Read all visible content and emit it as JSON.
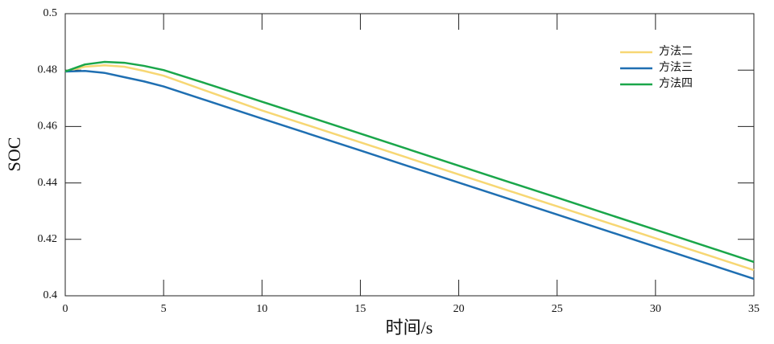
{
  "chart_data": {
    "type": "line",
    "x_label": "时间/s",
    "y_label": "SOC",
    "x": [
      0,
      1,
      2,
      3,
      4,
      5,
      7.5,
      10,
      15,
      20,
      25,
      30,
      35
    ],
    "series": [
      {
        "name": "方法二",
        "color": "#f7d774",
        "values": [
          0.4795,
          0.4812,
          0.4817,
          0.4812,
          0.4797,
          0.478,
          0.4718,
          0.4657,
          0.4544,
          0.443,
          0.4317,
          0.4204,
          0.4091
        ]
      },
      {
        "name": "方法三",
        "color": "#1f6fb2",
        "values": [
          0.4795,
          0.4797,
          0.479,
          0.4775,
          0.476,
          0.4742,
          0.4685,
          0.4628,
          0.4515,
          0.4401,
          0.4288,
          0.4174,
          0.406
        ]
      },
      {
        "name": "方法四",
        "color": "#1aa64a",
        "values": [
          0.4795,
          0.482,
          0.4829,
          0.4826,
          0.4815,
          0.48,
          0.4745,
          0.4688,
          0.4575,
          0.4461,
          0.4348,
          0.4234,
          0.412
        ]
      }
    ],
    "xlim": [
      0,
      35
    ],
    "xticks": [
      0,
      5,
      10,
      15,
      20,
      25,
      30,
      35
    ],
    "ylim": [
      0.4,
      0.5
    ],
    "yticks": [
      0.4,
      0.42,
      0.44,
      0.46,
      0.48,
      0.5
    ],
    "grid": false,
    "legend": "upper right"
  }
}
